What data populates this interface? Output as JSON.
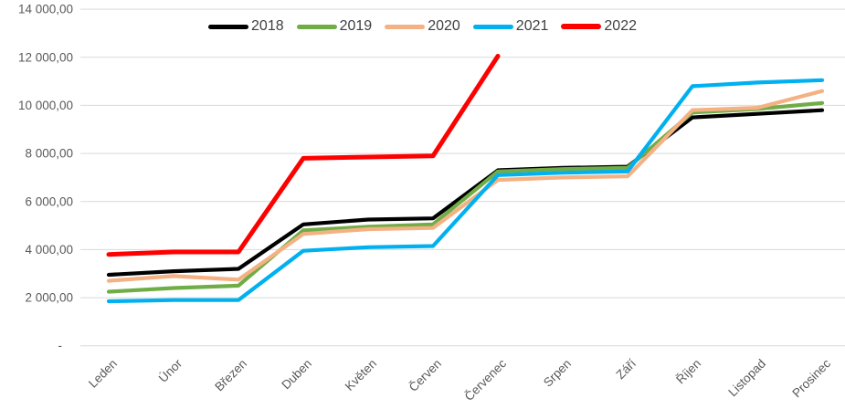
{
  "chart_data": {
    "type": "line",
    "title": "",
    "xlabel": "",
    "ylabel": "",
    "categories": [
      "Leden",
      "Únor",
      "Březen",
      "Duben",
      "Květen",
      "Červen",
      "Červenec",
      "Srpen",
      "Září",
      "Říjen",
      "Listopad",
      "Prosinec"
    ],
    "series": [
      {
        "name": "2018",
        "color": "#000000",
        "values": [
          2950,
          3100,
          3200,
          5050,
          5250,
          5300,
          7300,
          7400,
          7450,
          9500,
          9650,
          9800
        ]
      },
      {
        "name": "2019",
        "color": "#70AD47",
        "values": [
          2250,
          2400,
          2500,
          4800,
          4950,
          5050,
          7250,
          7350,
          7400,
          9700,
          9850,
          10100
        ]
      },
      {
        "name": "2020",
        "color": "#F4B183",
        "values": [
          2700,
          2900,
          2750,
          4650,
          4850,
          4900,
          6900,
          7000,
          7050,
          9800,
          9900,
          10600
        ]
      },
      {
        "name": "2021",
        "color": "#00B0F0",
        "values": [
          1850,
          1900,
          1900,
          3950,
          4100,
          4150,
          7100,
          7200,
          7250,
          10800,
          10950,
          11050
        ]
      },
      {
        "name": "2022",
        "color": "#FF0000",
        "values": [
          3800,
          3900,
          3900,
          7800,
          7850,
          7900,
          12050,
          null,
          null,
          null,
          null,
          null
        ]
      }
    ],
    "ylim": [
      0,
      14000
    ],
    "ytick_step": 2000,
    "ytick_labels": [
      "-",
      "2 000,00",
      "4 000,00",
      "6 000,00",
      "8 000,00",
      "10 000,00",
      "12 000,00",
      "14 000,00"
    ],
    "grid": true,
    "legend_position": "top",
    "x_labels_rotation_deg": -45
  },
  "colors": {
    "background": "#FFFFFF",
    "gridline": "#D9D9D9",
    "axis_line": "#D9D9D9",
    "axis_text": "#595959",
    "legend_text": "#404040"
  }
}
